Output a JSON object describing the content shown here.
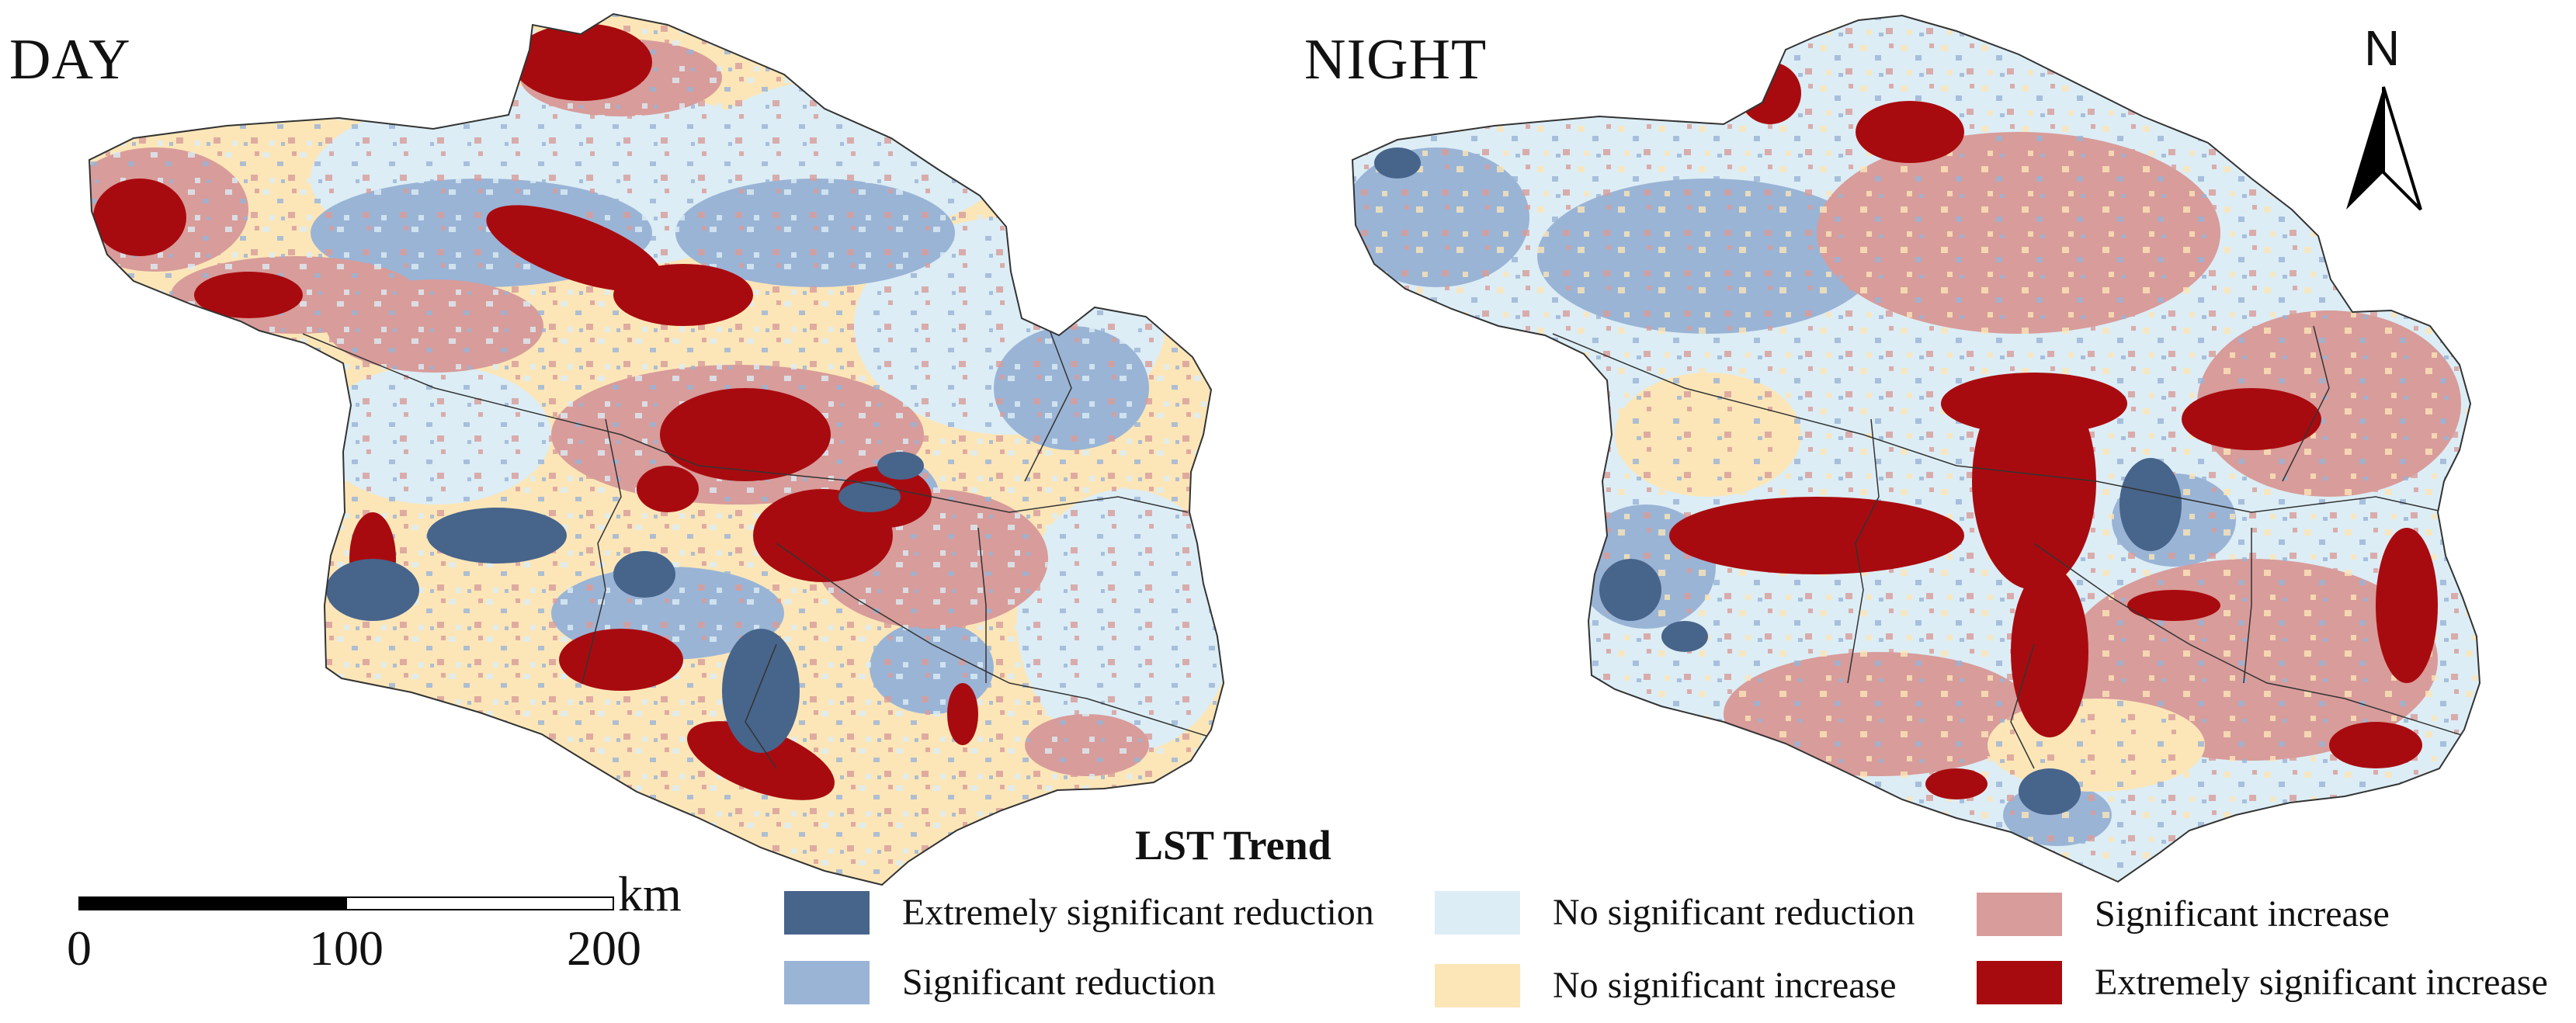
{
  "panels": {
    "day": "DAY",
    "night": "NIGHT"
  },
  "north_arrow": {
    "letter": "N"
  },
  "scale_bar": {
    "zero": "0",
    "mid": "100",
    "end": "200",
    "unit": "km"
  },
  "legend": {
    "title": "LST Trend",
    "items": [
      {
        "label": "Extremely significant reduction",
        "color": "#47648b"
      },
      {
        "label": "Significant reduction",
        "color": "#9ab4d6"
      },
      {
        "label": "No significant reduction",
        "color": "#dcedf5"
      },
      {
        "label": "No significant increase",
        "color": "#fce6b8"
      },
      {
        "label": "Significant increase",
        "color": "#d89c9a"
      },
      {
        "label": "Extremely significant increase",
        "color": "#a80b0f"
      }
    ]
  }
}
